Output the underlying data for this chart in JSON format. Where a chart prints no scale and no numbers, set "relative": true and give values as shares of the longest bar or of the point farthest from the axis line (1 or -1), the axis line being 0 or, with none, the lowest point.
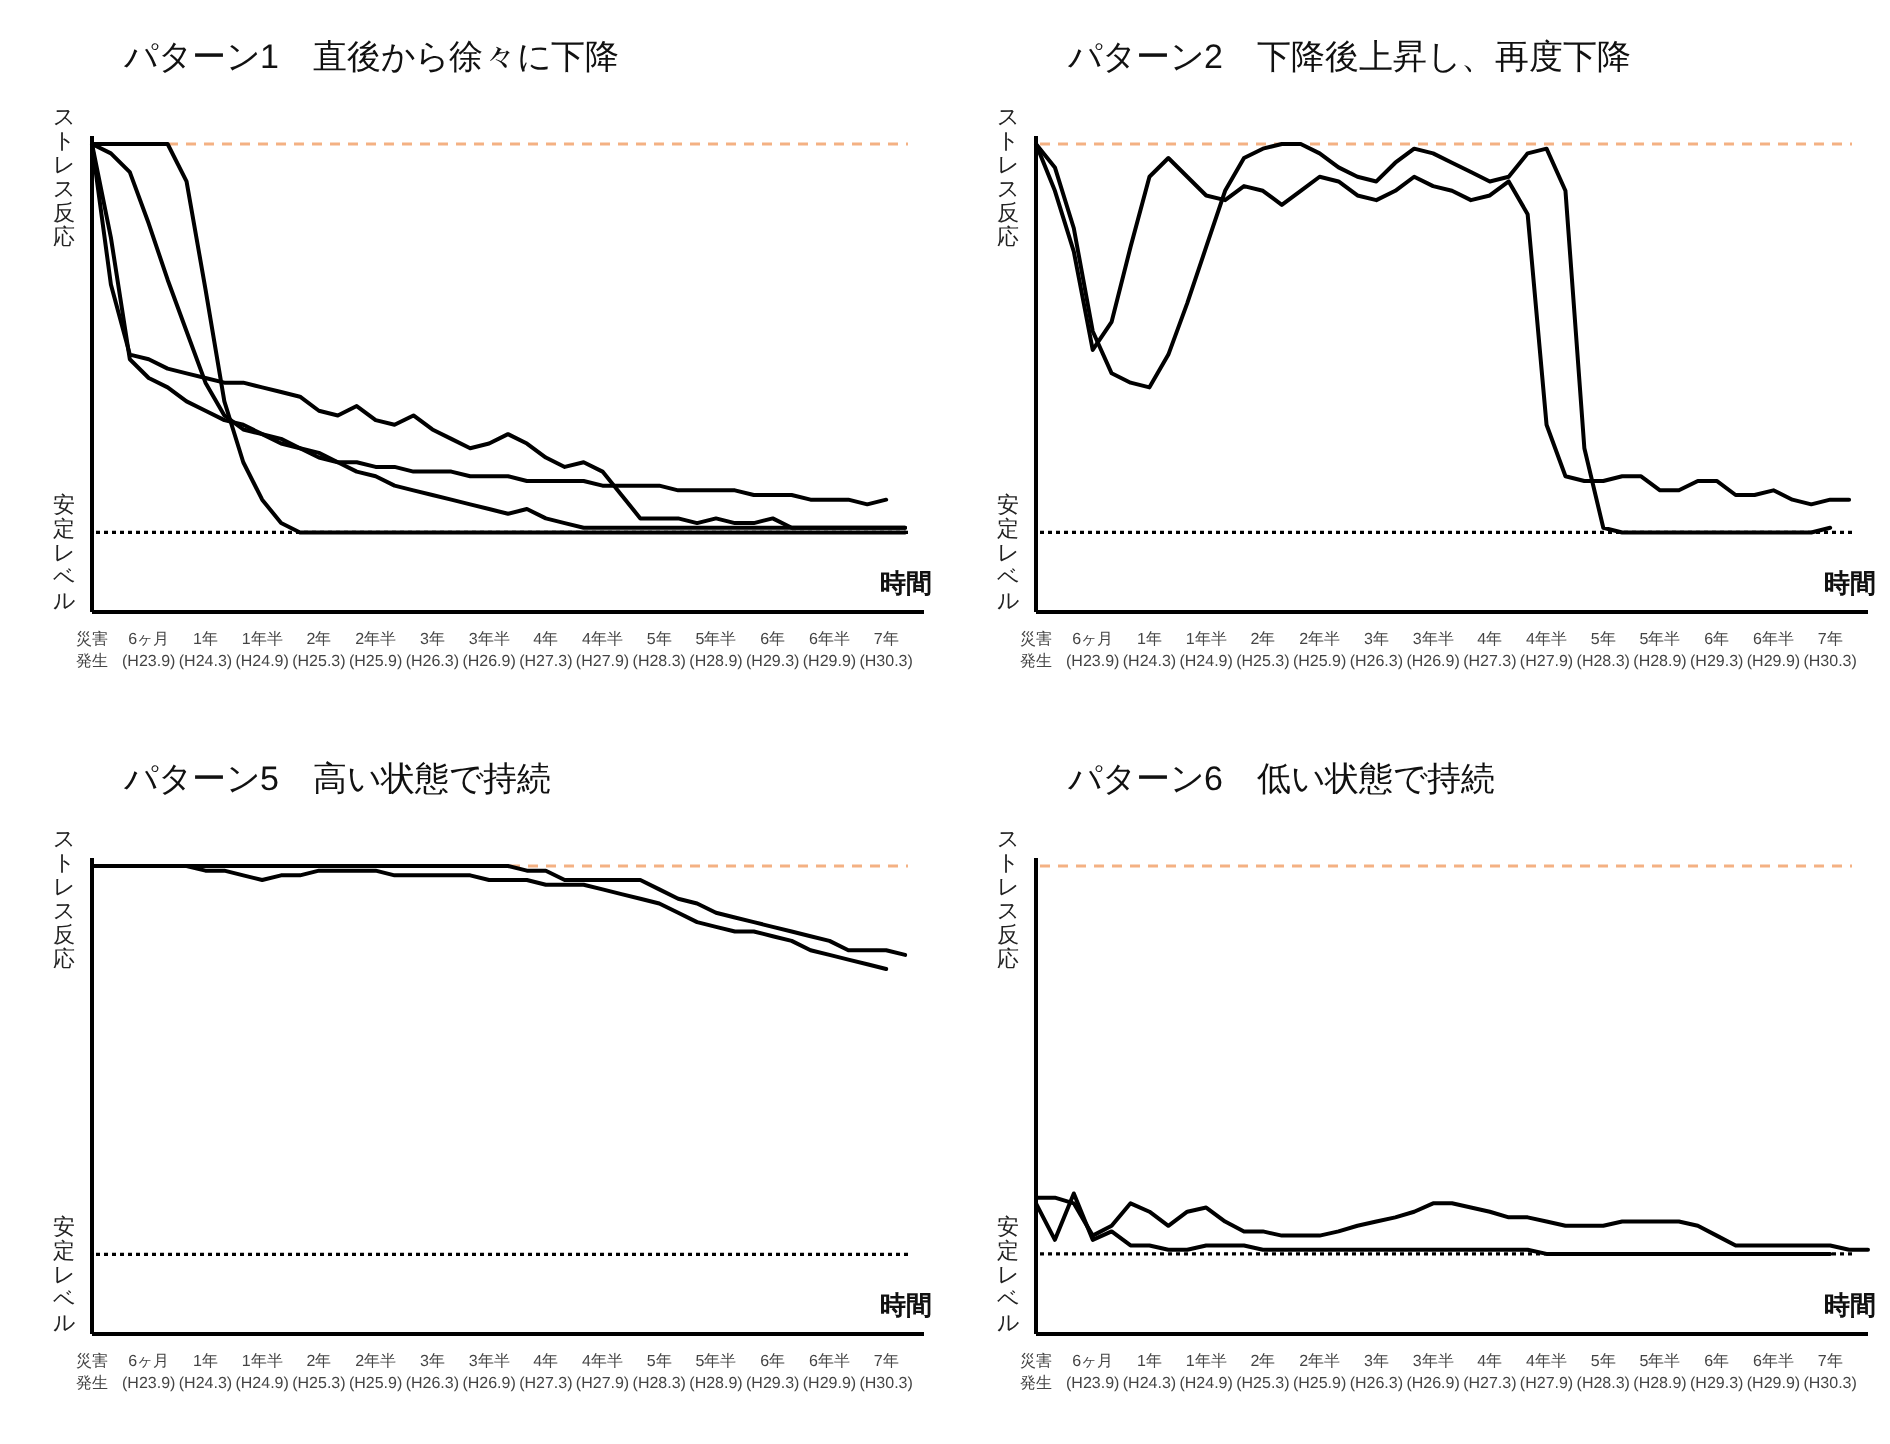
{
  "chart_data": [
    {
      "type": "line",
      "title": "パターン1　直後から徐々に下降",
      "xlabel": "時間",
      "relative": true,
      "categories": [
        "災害発生",
        null,
        null,
        "6ヶ月\n(H23.9)",
        null,
        null,
        "1年\n(H24.3)",
        null,
        null,
        "1年半\n(H24.9)",
        null,
        null,
        "2年\n(H25.3)",
        null,
        null,
        "2年半\n(H25.9)",
        null,
        null,
        "3年\n(H26.3)",
        null,
        null,
        "3年半\n(H26.9)",
        null,
        null,
        "4年\n(H27.3)",
        null,
        null,
        "4年半\n(H27.9)",
        null,
        null,
        "5年\n(H28.3)",
        null,
        null,
        "5年半\n(H28.9)",
        null,
        null,
        "6年\n(H29.3)",
        null,
        null,
        "6年半\n(H29.9)",
        null,
        null,
        "7年\n(H30.3)",
        null,
        null
      ],
      "ref_lines": [
        {
          "axis": "y",
          "value": 1,
          "label": "ストレス反応",
          "color": "#f4b183",
          "line_style": "dashed"
        },
        {
          "axis": "y",
          "value": 0.17,
          "label": "安定レベル",
          "color": "#000000",
          "line_style": "dotted"
        }
      ],
      "series": [
        {
          "color": "#000000",
          "values": [
            1.0,
            0.7,
            0.55,
            0.54,
            0.52,
            0.51,
            0.5,
            0.49,
            0.49,
            0.48,
            0.47,
            0.46,
            0.43,
            0.42,
            0.44,
            0.41,
            0.4,
            0.42,
            0.39,
            0.37,
            0.35,
            0.36,
            0.38,
            0.36,
            0.33,
            0.31,
            0.32,
            0.3,
            0.25,
            0.2,
            0.2,
            0.2,
            0.19,
            0.2,
            0.19,
            0.19,
            0.2,
            0.18,
            0.18,
            0.18,
            0.18,
            0.18,
            0.18,
            0.18,
            null
          ]
        },
        {
          "color": "#000000",
          "values": [
            1.0,
            1.0,
            1.0,
            1.0,
            1.0,
            0.92,
            0.69,
            0.45,
            0.32,
            0.24,
            0.19,
            0.17,
            0.17,
            0.17,
            0.17,
            0.17,
            0.17,
            0.17,
            0.17,
            0.17,
            0.17,
            0.17,
            0.17,
            0.17,
            0.17,
            0.17,
            0.17,
            0.17,
            0.17,
            0.17,
            0.17,
            0.17,
            0.17,
            0.17,
            0.17,
            0.17,
            0.17,
            0.17,
            0.17,
            0.17,
            0.17,
            0.17,
            0.17,
            0.17,
            null
          ]
        },
        {
          "color": "#000000",
          "values": [
            1.0,
            0.98,
            0.94,
            0.83,
            0.71,
            0.6,
            0.49,
            0.42,
            0.39,
            0.38,
            0.36,
            0.35,
            0.33,
            0.32,
            0.32,
            0.31,
            0.31,
            0.3,
            0.3,
            0.3,
            0.29,
            0.29,
            0.29,
            0.28,
            0.28,
            0.28,
            0.28,
            0.27,
            0.27,
            0.27,
            0.27,
            0.26,
            0.26,
            0.26,
            0.26,
            0.25,
            0.25,
            0.25,
            0.24,
            0.24,
            0.24,
            0.23,
            0.24,
            null,
            null
          ]
        },
        {
          "color": "#000000",
          "values": [
            1.0,
            0.8,
            0.54,
            0.5,
            0.48,
            0.45,
            0.43,
            0.41,
            0.4,
            0.38,
            0.37,
            0.35,
            0.34,
            0.32,
            0.3,
            0.29,
            0.27,
            0.26,
            0.25,
            0.24,
            0.23,
            0.22,
            0.21,
            0.22,
            0.2,
            0.19,
            0.18,
            0.18,
            0.18,
            0.18,
            0.18,
            0.18,
            0.18,
            0.18,
            0.18,
            0.18,
            0.18,
            0.18,
            0.18,
            0.18,
            0.18,
            0.18,
            0.18,
            0.18,
            null
          ]
        }
      ]
    },
    {
      "type": "line",
      "title": "パターン2　下降後上昇し、再度下降",
      "xlabel": "時間",
      "relative": true,
      "categories": [
        "災害発生",
        null,
        null,
        "6ヶ月\n(H23.9)",
        null,
        null,
        "1年\n(H24.3)",
        null,
        null,
        "1年半\n(H24.9)",
        null,
        null,
        "2年\n(H25.3)",
        null,
        null,
        "2年半\n(H25.9)",
        null,
        null,
        "3年\n(H26.3)",
        null,
        null,
        "3年半\n(H26.9)",
        null,
        null,
        "4年\n(H27.3)",
        null,
        null,
        "4年半\n(H27.9)",
        null,
        null,
        "5年\n(H28.3)",
        null,
        null,
        "5年半\n(H28.9)",
        null,
        null,
        "6年\n(H29.3)",
        null,
        null,
        "6年半\n(H29.9)",
        null,
        null,
        "7年\n(H30.3)",
        null,
        null
      ],
      "ref_lines": [
        {
          "axis": "y",
          "value": 1,
          "label": "ストレス反応",
          "color": "#f4b183",
          "line_style": "dashed"
        },
        {
          "axis": "y",
          "value": 0.17,
          "label": "安定レベル",
          "color": "#000000",
          "line_style": "dotted"
        }
      ],
      "series": [
        {
          "color": "#000000",
          "values": [
            1.0,
            0.95,
            0.82,
            0.6,
            0.51,
            0.49,
            0.48,
            0.55,
            0.66,
            0.78,
            0.9,
            0.97,
            0.99,
            1.0,
            1.0,
            0.98,
            0.95,
            0.93,
            0.92,
            0.96,
            0.99,
            0.98,
            0.96,
            0.94,
            0.92,
            0.93,
            0.98,
            0.99,
            0.9,
            0.35,
            0.18,
            0.17,
            0.17,
            0.17,
            0.17,
            0.17,
            0.17,
            0.17,
            0.17,
            0.17,
            0.17,
            0.17,
            0.18,
            null,
            null
          ]
        },
        {
          "color": "#000000",
          "values": [
            1.0,
            0.9,
            0.77,
            0.56,
            0.62,
            0.78,
            0.93,
            0.97,
            0.93,
            0.89,
            0.88,
            0.91,
            0.9,
            0.87,
            0.9,
            0.93,
            0.92,
            0.89,
            0.88,
            0.9,
            0.93,
            0.91,
            0.9,
            0.88,
            0.89,
            0.92,
            0.85,
            0.4,
            0.29,
            0.28,
            0.28,
            0.29,
            0.29,
            0.26,
            0.26,
            0.28,
            0.28,
            0.25,
            0.25,
            0.26,
            0.24,
            0.23,
            0.24,
            0.24,
            null
          ]
        }
      ]
    },
    {
      "type": "line",
      "title": "パターン5　高い状態で持続",
      "xlabel": "時間",
      "relative": true,
      "categories": [
        "災害発生",
        null,
        null,
        "6ヶ月\n(H23.9)",
        null,
        null,
        "1年\n(H24.3)",
        null,
        null,
        "1年半\n(H24.9)",
        null,
        null,
        "2年\n(H25.3)",
        null,
        null,
        "2年半\n(H25.9)",
        null,
        null,
        "3年\n(H26.3)",
        null,
        null,
        "3年半\n(H26.9)",
        null,
        null,
        "4年\n(H27.3)",
        null,
        null,
        "4年半\n(H27.9)",
        null,
        null,
        "5年\n(H28.3)",
        null,
        null,
        "5年半\n(H28.9)",
        null,
        null,
        "6年\n(H29.3)",
        null,
        null,
        "6年半\n(H29.9)",
        null,
        null,
        "7年\n(H30.3)",
        null,
        null
      ],
      "ref_lines": [
        {
          "axis": "y",
          "value": 1,
          "label": "ストレス反応",
          "color": "#f4b183",
          "line_style": "dashed"
        },
        {
          "axis": "y",
          "value": 0.17,
          "label": "安定レベル",
          "color": "#000000",
          "line_style": "dotted"
        }
      ],
      "series": [
        {
          "color": "#000000",
          "values": [
            1.0,
            1.0,
            1.0,
            1.0,
            1.0,
            1.0,
            1.0,
            1.0,
            1.0,
            1.0,
            1.0,
            1.0,
            1.0,
            1.0,
            1.0,
            1.0,
            1.0,
            1.0,
            1.0,
            1.0,
            1.0,
            1.0,
            1.0,
            0.99,
            0.99,
            0.97,
            0.97,
            0.97,
            0.97,
            0.97,
            0.95,
            0.93,
            0.92,
            0.9,
            0.89,
            0.88,
            0.87,
            0.86,
            0.85,
            0.84,
            0.82,
            0.82,
            0.82,
            0.81,
            null
          ]
        },
        {
          "color": "#000000",
          "values": [
            1.0,
            1.0,
            1.0,
            1.0,
            1.0,
            1.0,
            0.99,
            0.99,
            0.98,
            0.97,
            0.98,
            0.98,
            0.99,
            0.99,
            0.99,
            0.99,
            0.98,
            0.98,
            0.98,
            0.98,
            0.98,
            0.97,
            0.97,
            0.97,
            0.96,
            0.96,
            0.96,
            0.95,
            0.94,
            0.93,
            0.92,
            0.9,
            0.88,
            0.87,
            0.86,
            0.86,
            0.85,
            0.84,
            0.82,
            0.81,
            0.8,
            0.79,
            0.78,
            null,
            null
          ]
        }
      ]
    },
    {
      "type": "line",
      "title": "パターン6　低い状態で持続",
      "xlabel": "時間",
      "relative": true,
      "categories": [
        "災害発生",
        null,
        null,
        "6ヶ月\n(H23.9)",
        null,
        null,
        "1年\n(H24.3)",
        null,
        null,
        "1年半\n(H24.9)",
        null,
        null,
        "2年\n(H25.3)",
        null,
        null,
        "2年半\n(H25.9)",
        null,
        null,
        "3年\n(H26.3)",
        null,
        null,
        "3年半\n(H26.9)",
        null,
        null,
        "4年\n(H27.3)",
        null,
        null,
        "4年半\n(H27.9)",
        null,
        null,
        "5年\n(H28.3)",
        null,
        null,
        "5年半\n(H28.9)",
        null,
        null,
        "6年\n(H29.3)",
        null,
        null,
        "6年半\n(H29.9)",
        null,
        null,
        "7年\n(H30.3)",
        null,
        null
      ],
      "ref_lines": [
        {
          "axis": "y",
          "value": 3.33,
          "label": "ストレス反応",
          "color": "#f4b183",
          "line_style": "dashed"
        },
        {
          "axis": "y",
          "value": 0.57,
          "label": "安定レベル",
          "color": "#000000",
          "line_style": "dotted"
        }
      ],
      "series": [
        {
          "color": "#000000",
          "values": [
            0.97,
            0.97,
            0.93,
            0.7,
            0.77,
            0.93,
            0.87,
            0.77,
            0.87,
            0.9,
            0.8,
            0.73,
            0.73,
            0.7,
            0.7,
            0.7,
            0.73,
            0.77,
            0.8,
            0.83,
            0.87,
            0.93,
            0.93,
            0.9,
            0.87,
            0.83,
            0.83,
            0.8,
            0.77,
            0.77,
            0.77,
            0.8,
            0.8,
            0.8,
            0.8,
            0.77,
            0.7,
            0.63,
            0.63,
            0.63,
            0.63,
            0.63,
            0.63,
            0.6,
            0.6
          ]
        },
        {
          "color": "#000000",
          "values": [
            0.93,
            0.67,
            1.0,
            0.67,
            0.73,
            0.63,
            0.63,
            0.6,
            0.6,
            0.63,
            0.63,
            0.63,
            0.6,
            0.6,
            0.6,
            0.6,
            0.6,
            0.6,
            0.6,
            0.6,
            0.6,
            0.6,
            0.6,
            0.6,
            0.6,
            0.6,
            0.6,
            0.57,
            0.57,
            0.57,
            0.57,
            0.57,
            0.57,
            0.57,
            0.57,
            0.57,
            0.57,
            0.57,
            0.57,
            0.57,
            0.57,
            0.57,
            0.57,
            null,
            null
          ]
        }
      ]
    }
  ]
}
